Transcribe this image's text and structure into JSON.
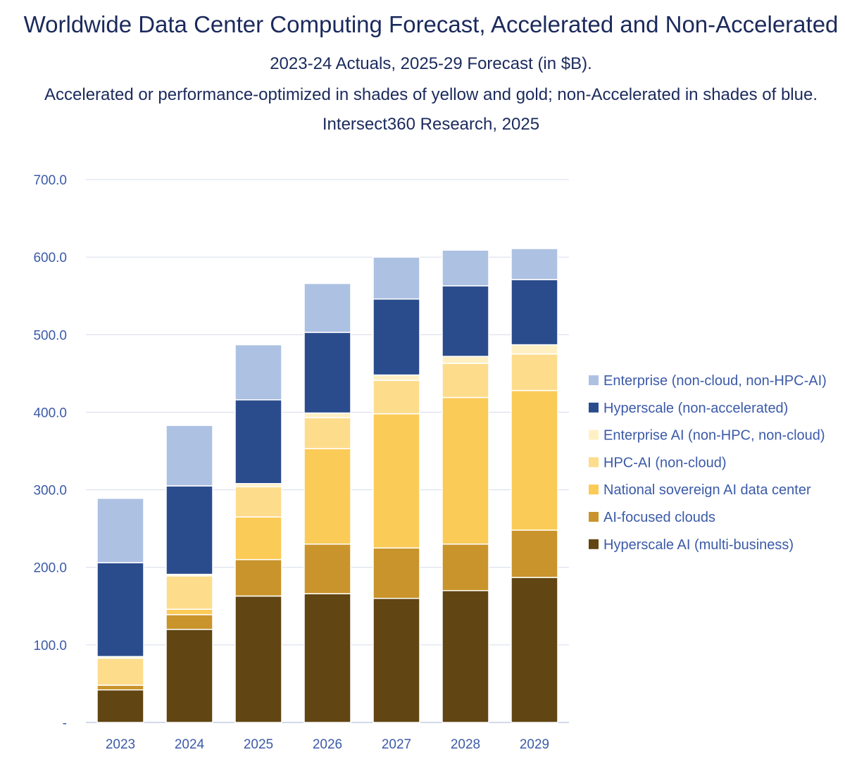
{
  "chart_data": {
    "type": "bar",
    "stacked": true,
    "title": "Worldwide Data Center Computing Forecast, Accelerated and Non-Accelerated",
    "subtitle_lines": [
      "2023-24 Actuals, 2025-29 Forecast (in $B).",
      "Accelerated or performance-optimized in shades of yellow and gold; non-Accelerated in shades of blue.",
      "Intersect360 Research, 2025"
    ],
    "xlabel": "",
    "ylabel": "",
    "ylim": [
      0,
      700
    ],
    "y_ticks": [
      {
        "value": 0,
        "label": "-"
      },
      {
        "value": 100,
        "label": "100.0"
      },
      {
        "value": 200,
        "label": "200.0"
      },
      {
        "value": 300,
        "label": "300.0"
      },
      {
        "value": 400,
        "label": "400.0"
      },
      {
        "value": 500,
        "label": "500.0"
      },
      {
        "value": 600,
        "label": "600.0"
      },
      {
        "value": 700,
        "label": "700.0"
      }
    ],
    "grid": true,
    "legend_position": "right",
    "categories": [
      "2023",
      "2024",
      "2025",
      "2026",
      "2027",
      "2028",
      "2029"
    ],
    "series": [
      {
        "name": "Hyperscale AI (multi-business)",
        "color": "#614512",
        "values": [
          42,
          120,
          163,
          166,
          160,
          170,
          187
        ]
      },
      {
        "name": "AI-focused clouds",
        "color": "#c9942b",
        "values": [
          6,
          19,
          47,
          64,
          65,
          60,
          61
        ]
      },
      {
        "name": "National sovereign AI data center",
        "color": "#fbcb57",
        "values": [
          0,
          7,
          55,
          123,
          173,
          189,
          180
        ]
      },
      {
        "name": "HPC-AI (non-cloud)",
        "color": "#fddc8c",
        "values": [
          35,
          43,
          39,
          40,
          43,
          44,
          47
        ]
      },
      {
        "name": "Enterprise AI (non-HPC, non-cloud)",
        "color": "#fff0c4",
        "values": [
          2,
          2,
          4,
          6,
          7,
          9,
          12
        ]
      },
      {
        "name": "Hyperscale (non-accelerated)",
        "color": "#2b4c8c",
        "values": [
          121,
          114,
          108,
          104,
          98,
          91,
          84
        ]
      },
      {
        "name": "Enterprise (non-cloud, non-HPC-AI)",
        "color": "#adc1e3",
        "values": [
          83,
          78,
          71,
          63,
          54,
          46,
          40
        ]
      }
    ]
  },
  "colors": {
    "title": "#1b2a5c",
    "axis_text": "#3b5aa8",
    "gridline": "#d5dcec",
    "axis_line": "#c3cbe0"
  }
}
